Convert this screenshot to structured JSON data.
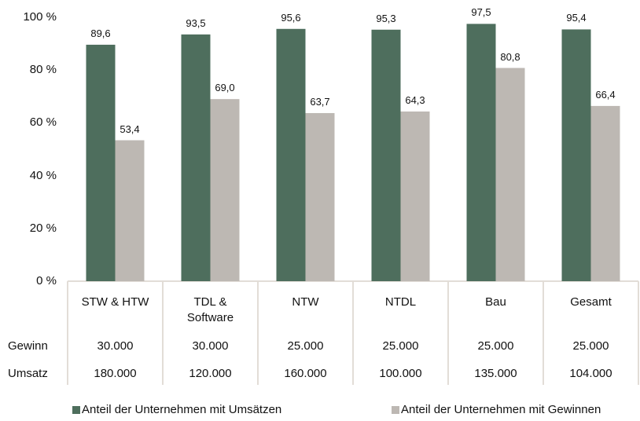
{
  "chart_data": {
    "type": "bar",
    "categories": [
      "STW & HTW",
      "TDL & Software",
      "NTW",
      "NTDL",
      "Bau",
      "Gesamt"
    ],
    "series": [
      {
        "name": "Anteil der Unternehmen mit Umsätzen",
        "color": "#4e6e5d",
        "values": [
          89.6,
          93.5,
          95.6,
          95.3,
          97.5,
          95.4
        ],
        "value_labels": [
          "89,6",
          "93,5",
          "95,6",
          "95,3",
          "97,5",
          "95,4"
        ]
      },
      {
        "name": "Anteil der Unternehmen mit Gewinnen",
        "color": "#bdb8b3",
        "values": [
          53.4,
          69.0,
          63.7,
          64.3,
          80.8,
          66.4
        ],
        "value_labels": [
          "53,4",
          "69,0",
          "63,7",
          "64,3",
          "80,8",
          "66,4"
        ]
      }
    ],
    "ylim": [
      0,
      100
    ],
    "yticks": [
      {
        "value": 0,
        "label": "0 %"
      },
      {
        "value": 20,
        "label": "20 %"
      },
      {
        "value": 40,
        "label": "40 %"
      },
      {
        "value": 60,
        "label": "60 %"
      },
      {
        "value": 80,
        "label": "80 %"
      },
      {
        "value": 100,
        "label": "100 %"
      }
    ],
    "grid": false,
    "legend": "bottom",
    "table_rows": [
      {
        "label": "Gewinn",
        "values": [
          "30.000",
          "30.000",
          "25.000",
          "25.000",
          "25.000",
          "25.000"
        ]
      },
      {
        "label": "Umsatz",
        "values": [
          "180.000",
          "120.000",
          "160.000",
          "100.000",
          "135.000",
          "104.000"
        ]
      }
    ]
  }
}
